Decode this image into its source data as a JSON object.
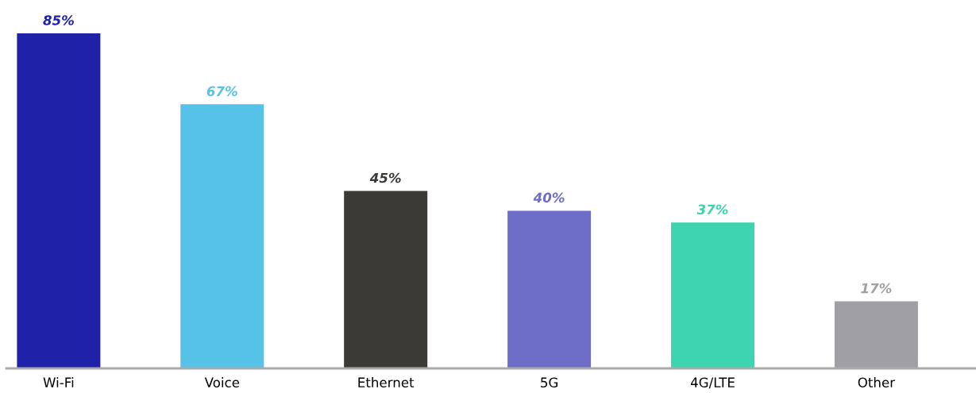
{
  "chart_data": {
    "type": "bar",
    "categories": [
      "Wi-Fi",
      "Voice",
      "Ethernet",
      "5G",
      "4G/LTE",
      "Other"
    ],
    "values": [
      85,
      67,
      45,
      40,
      37,
      17
    ],
    "colors": [
      "#1f21a8",
      "#56c2e8",
      "#3b3a36",
      "#6e6ec8",
      "#3cd5b0",
      "#a0a0a4"
    ],
    "value_labels": [
      "85%",
      "67%",
      "45%",
      "40%",
      "37%",
      "17%"
    ],
    "grid": false,
    "legend": false
  }
}
